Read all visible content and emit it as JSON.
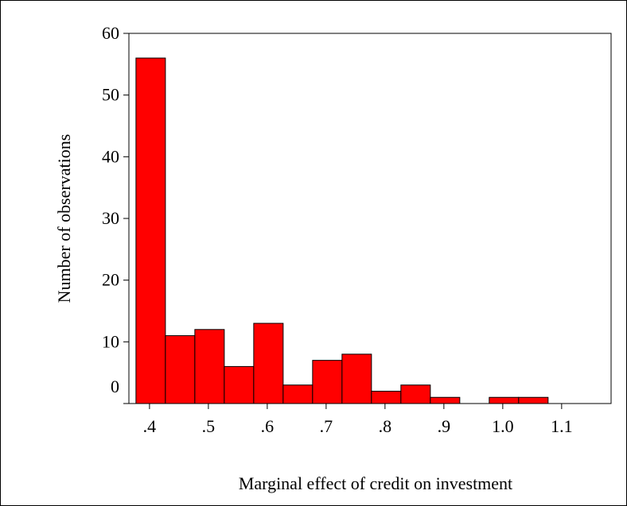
{
  "chart_data": {
    "type": "histogram",
    "xlabel": "Marginal effect of credit on investment",
    "ylabel": "Number of observations",
    "bins": [
      0.377,
      0.427,
      0.477,
      0.527,
      0.577,
      0.627,
      0.677,
      0.727,
      0.777,
      0.827,
      0.877,
      0.927,
      0.977,
      1.027,
      1.077
    ],
    "values": [
      56,
      11,
      12,
      6,
      13,
      3,
      7,
      8,
      2,
      3,
      1,
      0,
      1,
      1
    ],
    "color": "#ff0000",
    "xlim": [
      0.365,
      1.184
    ],
    "ylim": [
      0,
      60
    ],
    "xticks": [
      {
        "value": 0.4,
        "label": ".4"
      },
      {
        "value": 0.5,
        "label": ".5"
      },
      {
        "value": 0.6,
        "label": ".6"
      },
      {
        "value": 0.7,
        "label": ".7"
      },
      {
        "value": 0.8,
        "label": ".8"
      },
      {
        "value": 0.9,
        "label": ".9"
      },
      {
        "value": 1.0,
        "label": "1.0"
      },
      1.1
    ],
    "yticks": [
      0,
      10,
      20,
      30,
      40,
      50,
      60
    ]
  }
}
